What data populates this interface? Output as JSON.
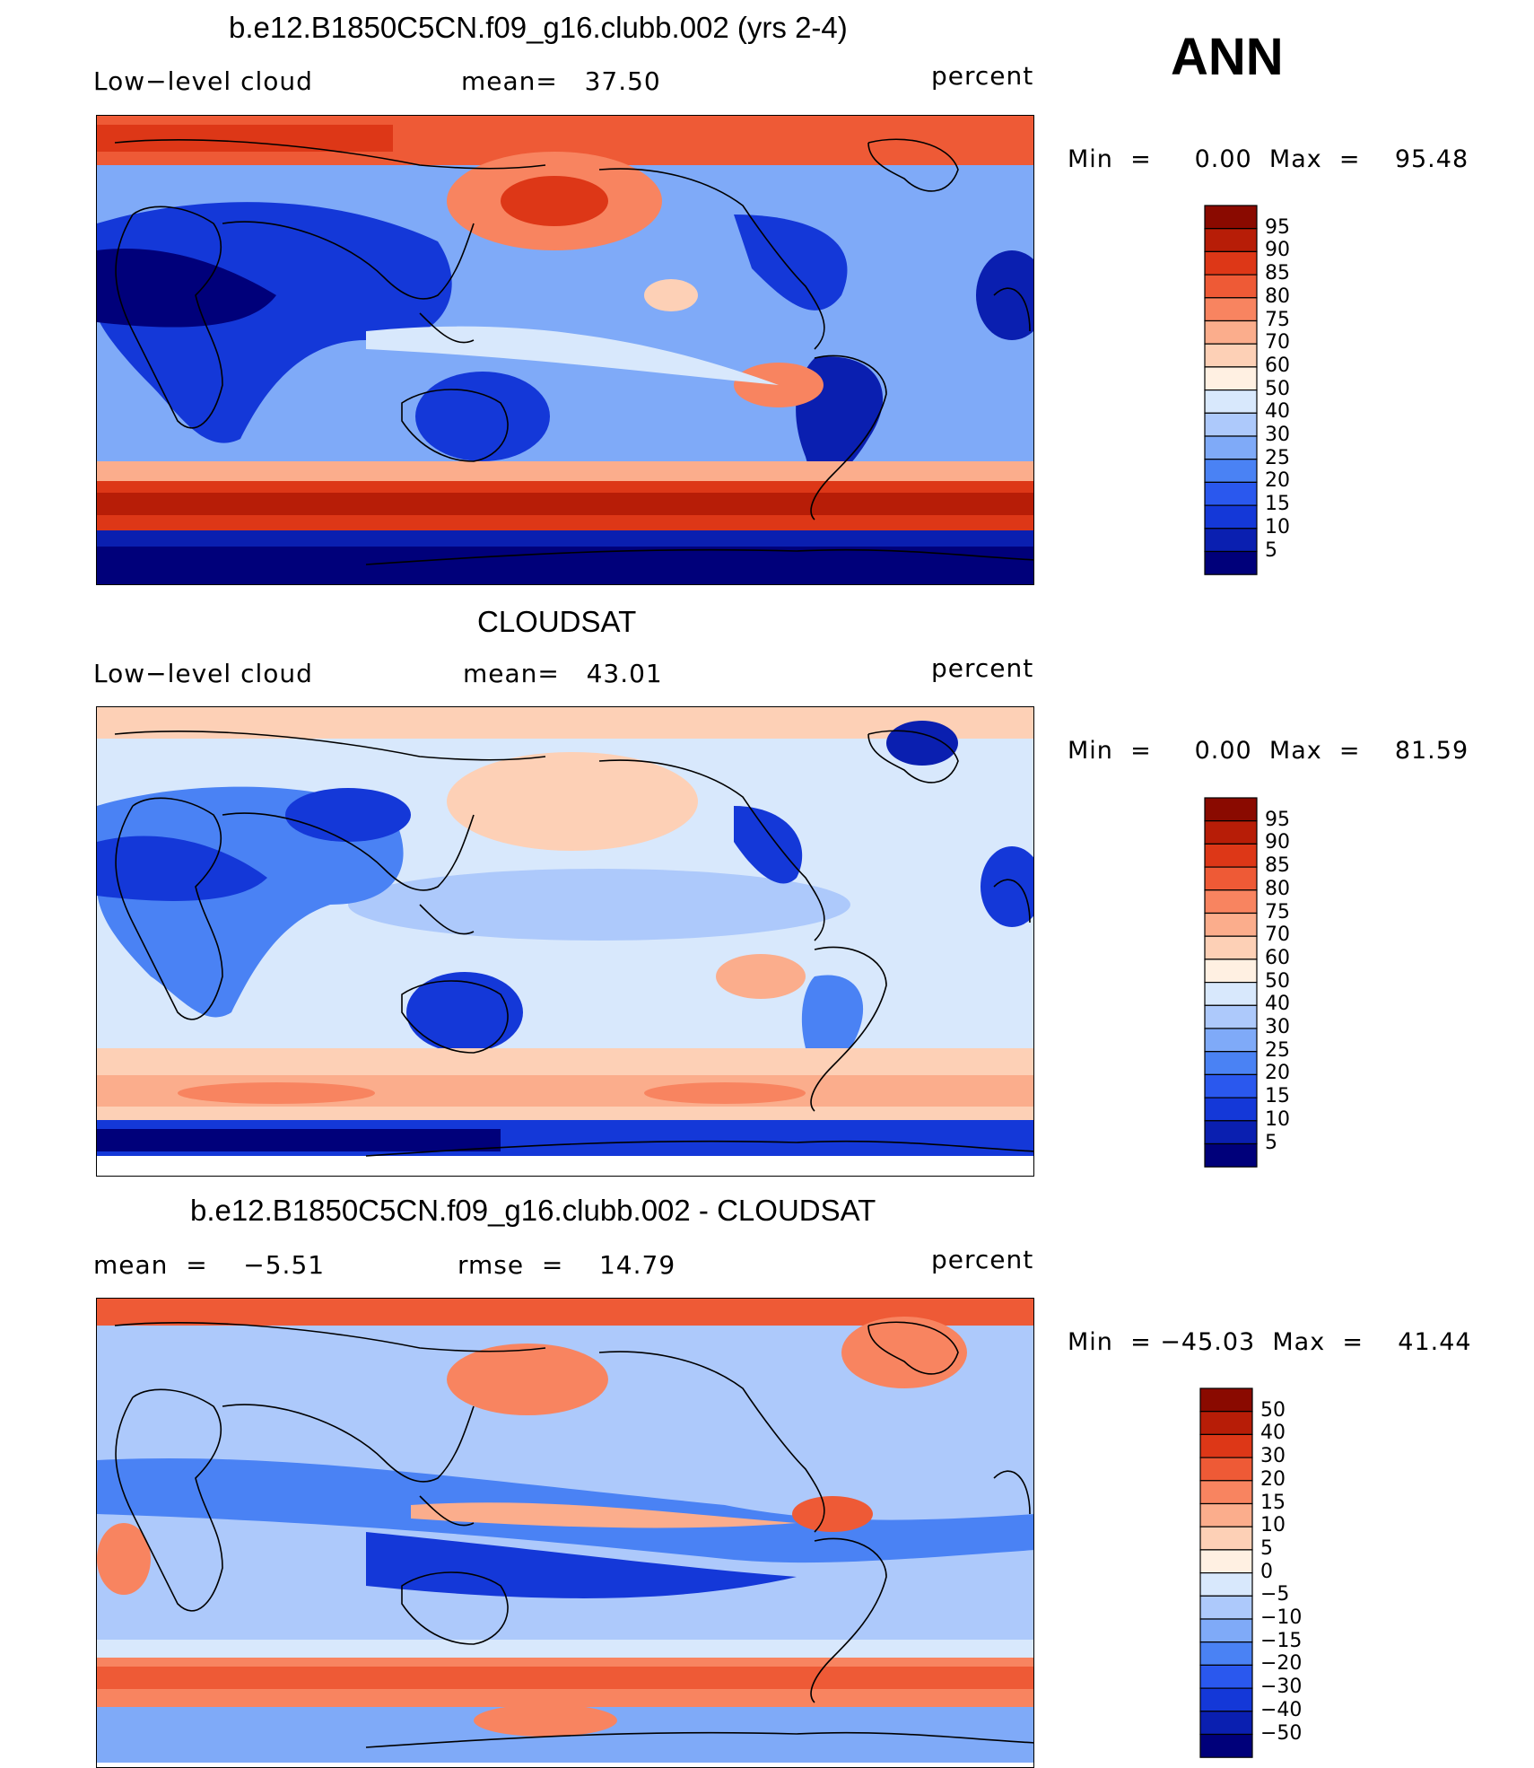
{
  "season": "ANN",
  "units": "percent",
  "colors": {
    "abs": [
      "#00007a",
      "#0a1fb0",
      "#1438d8",
      "#2a58ee",
      "#4a82f4",
      "#7faaf8",
      "#adc9fb",
      "#d8e8fc",
      "#fff0e2",
      "#fdd0b6",
      "#fbad8c",
      "#f88460",
      "#ee5a36",
      "#dd3717",
      "#b71d07",
      "#8a0a00"
    ],
    "diff": [
      "#00007a",
      "#0a1fb0",
      "#1438d8",
      "#2a58ee",
      "#4a82f4",
      "#7faaf8",
      "#adc9fb",
      "#d8e8fc",
      "#fff0e2",
      "#fdd0b6",
      "#fbad8c",
      "#f88460",
      "#ee5a36",
      "#dd3717",
      "#b71d07",
      "#8a0a00"
    ]
  },
  "panels": [
    {
      "title": "b.e12.B1850C5CN.f09_g16.clubb.002 (yrs 2-4)",
      "left_label": "Low−level cloud",
      "mid_label": "mean=   37.50",
      "right_label": "percent",
      "minmax": "Min  =     0.00  Max  =    95.48",
      "levels": [
        "95",
        "90",
        "85",
        "80",
        "75",
        "70",
        "60",
        "50",
        "40",
        "30",
        "25",
        "20",
        "15",
        "10",
        "5"
      ],
      "palette": "abs"
    },
    {
      "title": "CLOUDSAT",
      "left_label": "Low−level cloud",
      "mid_label": "mean=   43.01",
      "right_label": "percent",
      "minmax": "Min  =     0.00  Max  =    81.59",
      "levels": [
        "95",
        "90",
        "85",
        "80",
        "75",
        "70",
        "60",
        "50",
        "40",
        "30",
        "25",
        "20",
        "15",
        "10",
        "5"
      ],
      "palette": "abs"
    },
    {
      "title": "b.e12.B1850C5CN.f09_g16.clubb.002 - CLOUDSAT",
      "left_label": "mean  =    −5.51",
      "mid_label": "rmse  =    14.79",
      "right_label": "percent",
      "minmax": "Min  = −45.03  Max  =    41.44",
      "levels": [
        "50",
        "40",
        "30",
        "20",
        "15",
        "10",
        "5",
        "0",
        "−5",
        "−10",
        "−15",
        "−20",
        "−30",
        "−40",
        "−50"
      ],
      "palette": "diff"
    }
  ]
}
